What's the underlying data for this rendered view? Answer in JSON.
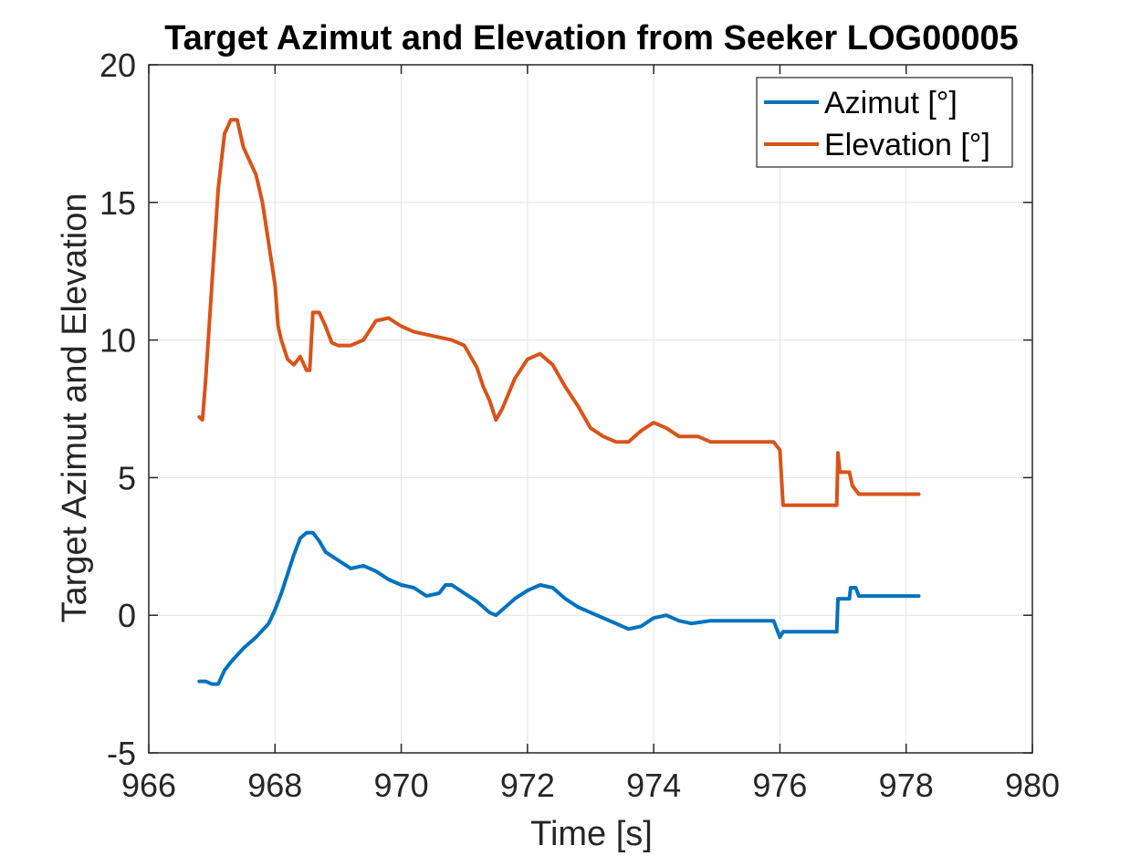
{
  "chart_data": {
    "type": "line",
    "title": "Target Azimut and Elevation from Seeker LOG00005",
    "xlabel": "Time [s]",
    "ylabel": "Target Azimut and Elevation",
    "xlim": [
      966,
      980
    ],
    "ylim": [
      -5,
      20
    ],
    "xticks": [
      966,
      968,
      970,
      972,
      974,
      976,
      978,
      980
    ],
    "yticks": [
      -5,
      0,
      5,
      10,
      15,
      20
    ],
    "xtick_labels": [
      "966",
      "968",
      "970",
      "972",
      "974",
      "976",
      "978",
      "980"
    ],
    "ytick_labels": [
      "-5",
      "0",
      "5",
      "10",
      "15",
      "20"
    ],
    "grid": true,
    "legend_position": "top-right",
    "series": [
      {
        "name": "Azimut [°]",
        "color": "#0072BD",
        "x": [
          966.8,
          966.9,
          967.0,
          967.1,
          967.2,
          967.3,
          967.5,
          967.7,
          967.9,
          968.0,
          968.1,
          968.2,
          968.3,
          968.4,
          968.5,
          968.6,
          968.7,
          968.8,
          969.0,
          969.2,
          969.4,
          969.6,
          969.8,
          970.0,
          970.2,
          970.4,
          970.6,
          970.7,
          970.8,
          971.0,
          971.2,
          971.4,
          971.5,
          971.6,
          971.8,
          972.0,
          972.2,
          972.4,
          972.6,
          972.8,
          973.0,
          973.2,
          973.4,
          973.6,
          973.8,
          974.0,
          974.2,
          974.4,
          974.6,
          974.9,
          975.9,
          976.0,
          976.05,
          976.9,
          976.92,
          977.1,
          977.12,
          977.2,
          977.25,
          978.2
        ],
        "y": [
          -2.4,
          -2.4,
          -2.5,
          -2.5,
          -2.0,
          -1.7,
          -1.2,
          -0.8,
          -0.3,
          0.2,
          0.8,
          1.5,
          2.2,
          2.8,
          3.0,
          3.0,
          2.7,
          2.3,
          2.0,
          1.7,
          1.8,
          1.6,
          1.3,
          1.1,
          1.0,
          0.7,
          0.8,
          1.1,
          1.1,
          0.8,
          0.5,
          0.1,
          0.0,
          0.2,
          0.6,
          0.9,
          1.1,
          1.0,
          0.6,
          0.3,
          0.1,
          -0.1,
          -0.3,
          -0.5,
          -0.4,
          -0.1,
          0.0,
          -0.2,
          -0.3,
          -0.2,
          -0.2,
          -0.8,
          -0.6,
          -0.6,
          0.6,
          0.6,
          1.0,
          1.0,
          0.7,
          0.7
        ]
      },
      {
        "name": "Elevation [°]",
        "color": "#D95319",
        "x": [
          966.8,
          966.85,
          966.9,
          967.0,
          967.1,
          967.2,
          967.3,
          967.4,
          967.5,
          967.6,
          967.7,
          967.8,
          967.9,
          968.0,
          968.05,
          968.1,
          968.2,
          968.3,
          968.4,
          968.5,
          968.55,
          968.6,
          968.7,
          968.8,
          968.9,
          969.0,
          969.2,
          969.4,
          969.6,
          969.8,
          970.0,
          970.2,
          970.4,
          970.6,
          970.8,
          971.0,
          971.2,
          971.3,
          971.4,
          971.5,
          971.6,
          971.8,
          972.0,
          972.2,
          972.4,
          972.6,
          972.8,
          973.0,
          973.2,
          973.4,
          973.6,
          973.8,
          974.0,
          974.2,
          974.4,
          974.7,
          974.9,
          975.8,
          975.9,
          976.0,
          976.05,
          976.9,
          976.92,
          976.95,
          977.1,
          977.15,
          977.25,
          978.2
        ],
        "y": [
          7.2,
          7.1,
          8.5,
          12.0,
          15.5,
          17.5,
          18.0,
          18.0,
          17.0,
          16.5,
          16.0,
          15.0,
          13.5,
          12.0,
          10.5,
          10.0,
          9.3,
          9.1,
          9.4,
          8.9,
          8.9,
          11.0,
          11.0,
          10.5,
          9.9,
          9.8,
          9.8,
          10.0,
          10.7,
          10.8,
          10.5,
          10.3,
          10.2,
          10.1,
          10.0,
          9.8,
          9.0,
          8.3,
          7.8,
          7.1,
          7.5,
          8.6,
          9.3,
          9.5,
          9.1,
          8.3,
          7.6,
          6.8,
          6.5,
          6.3,
          6.3,
          6.7,
          7.0,
          6.8,
          6.5,
          6.5,
          6.3,
          6.3,
          6.3,
          6.0,
          4.0,
          4.0,
          5.9,
          5.2,
          5.2,
          4.7,
          4.4,
          4.4
        ]
      }
    ]
  }
}
